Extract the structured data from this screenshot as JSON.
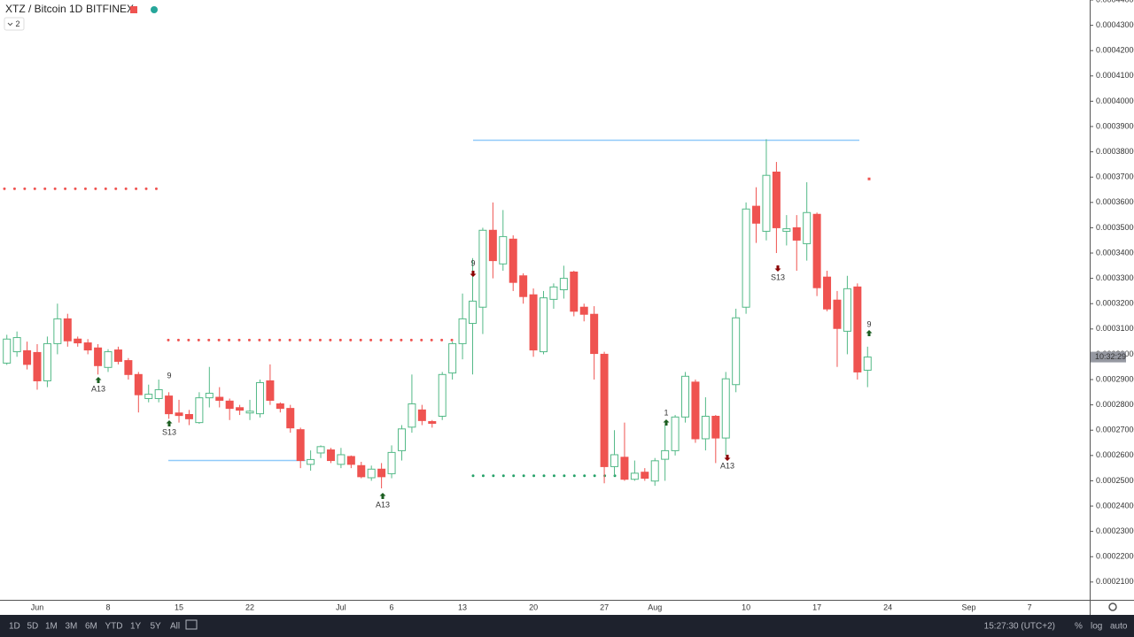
{
  "chart_data": {
    "type": "candlestick",
    "symbol": "XTZ / Bitcoin",
    "interval": "1D",
    "exchange": "BITFINEX",
    "layout_chip": "2",
    "categories": [
      null,
      null,
      null,
      "Jun",
      null,
      null,
      null,
      null,
      null,
      null,
      "8",
      null,
      null,
      null,
      null,
      null,
      null,
      "15",
      null,
      null,
      null,
      null,
      null,
      null,
      "22",
      null,
      null,
      null,
      null,
      null,
      null,
      null,
      null,
      "Jul",
      null,
      null,
      null,
      null,
      "6",
      null,
      null,
      null,
      null,
      null,
      null,
      "13",
      null,
      null,
      null,
      null,
      null,
      null,
      "20",
      null,
      null,
      null,
      null,
      null,
      null,
      "27",
      null,
      null,
      null,
      null,
      "Aug",
      null,
      null,
      null,
      null,
      null,
      null,
      null,
      null,
      "10",
      null,
      null,
      null,
      null,
      null,
      null,
      "17",
      null,
      null,
      null,
      null,
      null,
      null,
      "24",
      null,
      null,
      null,
      null,
      null,
      null,
      null,
      "Sep",
      null,
      null,
      null,
      null,
      null,
      "7",
      null,
      null,
      null,
      null,
      null,
      null
    ],
    "open": [
      0.0002965,
      0.000301,
      0.0003014,
      0.0003007,
      0.0002895,
      0.0003042,
      0.000314,
      0.000306,
      0.0003045,
      0.0003025,
      0.0002948,
      0.0003017,
      0.0002975,
      0.000292,
      0.0002825,
      0.0002825,
      0.0002835,
      0.0002768,
      0.0002762,
      0.000273,
      0.0002828,
      0.000283,
      0.0002815,
      0.0002789,
      0.0002768,
      0.0002765,
      0.0002895,
      0.0002804,
      0.0002786,
      0.0002702,
      0.0002565,
      0.000261,
      0.0002622,
      0.0002565,
      0.0002596,
      0.000256,
      0.0002512,
      0.0002546,
      0.0002528,
      0.0002619,
      0.0002712,
      0.000278,
      0.0002734,
      0.0002755,
      0.0002926,
      0.0003042,
      0.0003122,
      0.0003186,
      0.000349,
      0.0003357,
      0.0003455,
      0.000331,
      0.0003235,
      0.000301,
      0.0003217,
      0.0003255,
      0.0003325,
      0.0003186,
      0.0003158,
      0.0003,
      0.0002556,
      0.0002593,
      0.0002506,
      0.0002534,
      0.0002499,
      0.0002585,
      0.0002619,
      0.0002752,
      0.000289,
      0.0002666,
      0.0002755,
      0.0002669,
      0.000288,
      0.0003186,
      0.0003585,
      0.0003486,
      0.000372,
      0.0003486,
      0.00035,
      0.0003437,
      0.0003553,
      0.0003305,
      0.0003214,
      0.0003091,
      0.0003266,
      0.0002937,
      null,
      null,
      null,
      null,
      null,
      null,
      null,
      null,
      null,
      null,
      null,
      null,
      null,
      null,
      null,
      null,
      null,
      null,
      null,
      null,
      null,
      null
    ],
    "high": [
      0.0003077,
      0.000309,
      0.000305,
      0.000304,
      0.000307,
      0.00032,
      0.000316,
      0.000307,
      0.000306,
      0.000304,
      0.000302,
      0.000303,
      0.0002985,
      0.000293,
      0.000288,
      0.00029,
      0.000285,
      0.000282,
      0.000278,
      0.000285,
      0.000295,
      0.000287,
      0.0002825,
      0.00028,
      0.000282,
      0.00029,
      0.000296,
      0.000281,
      0.00028,
      0.000271,
      0.000262,
      0.000264,
      0.000263,
      0.000263,
      0.00026,
      0.0002575,
      0.000256,
      0.000257,
      0.000264,
      0.000272,
      0.000292,
      0.00028,
      0.000274,
      0.000293,
      0.000305,
      0.000324,
      0.000338,
      0.00035,
      0.00036,
      0.000357,
      0.000347,
      0.000332,
      0.000326,
      0.000325,
      0.000328,
      0.000335,
      0.000333,
      0.00032,
      0.000319,
      0.000301,
      0.00027,
      0.000273,
      0.000258,
      0.000255,
      0.000259,
      0.000272,
      0.000276,
      0.000293,
      0.00029,
      0.000283,
      0.000276,
      0.000293,
      0.000318,
      0.00036,
      0.000366,
      0.000385,
      0.000376,
      0.000355,
      0.000355,
      0.000368,
      0.000356,
      0.000333,
      0.000325,
      0.000331,
      0.000328,
      0.000303,
      null,
      null,
      null,
      null,
      null,
      null,
      null,
      null,
      null,
      null,
      null,
      null,
      null,
      null,
      null,
      null,
      null,
      null,
      null,
      null,
      null,
      null
    ],
    "low": [
      0.0002958,
      0.000299,
      0.000294,
      0.000286,
      0.000287,
      0.0003,
      0.000303,
      0.000303,
      0.0003,
      0.000292,
      0.000293,
      0.000296,
      0.00029,
      0.000277,
      0.000281,
      0.000281,
      0.0002745,
      0.000273,
      0.000272,
      0.0002725,
      0.000279,
      0.000279,
      0.000274,
      0.000276,
      0.000274,
      0.000275,
      0.00028,
      0.000277,
      0.000269,
      0.000255,
      0.000254,
      0.000259,
      0.000257,
      0.000255,
      0.000255,
      0.000251,
      0.00025,
      0.000247,
      0.000251,
      0.000258,
      0.000269,
      0.000272,
      0.000271,
      0.000274,
      0.00029,
      0.000298,
      0.000292,
      0.000308,
      0.00033,
      0.000333,
      0.000325,
      0.00032,
      0.000299,
      0.0003,
      0.000318,
      0.000322,
      0.000315,
      0.000313,
      0.00029,
      0.000249,
      0.000252,
      0.00025,
      0.00025,
      0.00025,
      0.000248,
      0.00025,
      0.00026,
      0.000273,
      0.000265,
      0.000262,
      0.000257,
      0.00026,
      0.000285,
      0.000316,
      0.000344,
      0.000345,
      0.00034,
      0.000343,
      0.000333,
      0.000337,
      0.000323,
      0.000317,
      0.000295,
      0.0003,
      0.00029,
      0.000287,
      null,
      null,
      null,
      null,
      null,
      null,
      null,
      null,
      null,
      null,
      null,
      null,
      null,
      null,
      null,
      null,
      null,
      null,
      null,
      null,
      null,
      null
    ],
    "close": [
      0.000306,
      0.0003066,
      0.000296,
      0.0002895,
      0.0003042,
      0.000314,
      0.0003053,
      0.0003045,
      0.0003017,
      0.0002955,
      0.000301,
      0.0002972,
      0.000292,
      0.000284,
      0.0002842,
      0.000286,
      0.0002765,
      0.0002758,
      0.0002745,
      0.0002828,
      0.0002846,
      0.0002818,
      0.0002786,
      0.0002779,
      0.0002775,
      0.0002888,
      0.0002818,
      0.0002786,
      0.0002709,
      0.000258,
      0.0002584,
      0.0002635,
      0.000258,
      0.0002603,
      0.0002565,
      0.0002516,
      0.0002546,
      0.0002516,
      0.0002612,
      0.0002705,
      0.0002804,
      0.0002738,
      0.0002727,
      0.000292,
      0.0003042,
      0.000314,
      0.000321,
      0.000349,
      0.000337,
      0.0003465,
      0.0003284,
      0.0003228,
      0.0003017,
      0.0003223,
      0.0003266,
      0.00033,
      0.000317,
      0.0003158,
      0.0003003,
      0.0002556,
      0.0002603,
      0.0002506,
      0.000253,
      0.000251,
      0.0002579,
      0.0002619,
      0.0002752,
      0.0002913,
      0.0002666,
      0.0002755,
      0.0002669,
      0.0002903,
      0.0003144,
      0.0003574,
      0.0003518,
      0.0003707,
      0.00035,
      0.0003496,
      0.0003451,
      0.000356,
      0.0003263,
      0.0003179,
      0.0003102,
      0.0003259,
      0.000293,
      0.0002989,
      null,
      null,
      null,
      null,
      null,
      null,
      null,
      null,
      null,
      null,
      null,
      null,
      null,
      null,
      null,
      null,
      null,
      null,
      null,
      null,
      null,
      null
    ],
    "up_color": "#53b987",
    "down_color": "#ef5350",
    "ylim": [
      0.000204,
      0.00044
    ],
    "yticks": [
      {
        "value": 0.00021,
        "label": "0.00021000"
      },
      {
        "value": 0.00022,
        "label": "0.00022000"
      },
      {
        "value": 0.00023,
        "label": "0.00023000"
      },
      {
        "value": 0.00024,
        "label": "0.00024000"
      },
      {
        "value": 0.00025,
        "label": "0.00025000"
      },
      {
        "value": 0.00026,
        "label": "0.00026000"
      },
      {
        "value": 0.00027,
        "label": "0.00027000"
      },
      {
        "value": 0.00028,
        "label": "0.00028000"
      },
      {
        "value": 0.00029,
        "label": "0.00029000"
      },
      {
        "value": 0.0003,
        "label": "0.00030000"
      },
      {
        "value": 0.00031,
        "label": "0.00031000"
      },
      {
        "value": 0.00032,
        "label": "0.00032000"
      },
      {
        "value": 0.00033,
        "label": "0.00033000"
      },
      {
        "value": 0.00034,
        "label": "0.00034000"
      },
      {
        "value": 0.00035,
        "label": "0.00035000"
      },
      {
        "value": 0.00036,
        "label": "0.00036000"
      },
      {
        "value": 0.00037,
        "label": "0.00037000"
      },
      {
        "value": 0.00038,
        "label": "0.00038000"
      },
      {
        "value": 0.00039,
        "label": "0.00039000"
      },
      {
        "value": 0.0004,
        "label": "0.00040000"
      },
      {
        "value": 0.00041,
        "label": "0.00041000"
      },
      {
        "value": 0.00042,
        "label": "0.00042000"
      },
      {
        "value": 0.00043,
        "label": "0.00043000"
      },
      {
        "value": 0.00044,
        "label": "0.00044000"
      }
    ],
    "grid": false,
    "levels": [
      {
        "value": 0.0003846,
        "color": "#90caf9",
        "style": "solid"
      },
      {
        "value": 0.000258,
        "color": "#90caf9",
        "style": "solid"
      },
      {
        "value": 0.0003654,
        "color": "#ef5350",
        "style": "dotted"
      },
      {
        "value": 0.0003056,
        "color": "#ef5350",
        "style": "dotted"
      },
      {
        "value": 0.000252,
        "color": "#26a269",
        "style": "dotted"
      },
      {
        "value": 0.0003693,
        "color": "#ef5350",
        "style": "point"
      }
    ],
    "signals": [
      {
        "text": "A13",
        "color": "#2fa4c7"
      },
      {
        "text": "9",
        "color": "#ef5350"
      },
      {
        "text": "S13",
        "color": "#f0a020"
      },
      {
        "text": "A13",
        "color": "#2fa4c7"
      },
      {
        "text": "9",
        "color": "#26a269"
      },
      {
        "text": "1",
        "color": "#1e9fb0"
      },
      {
        "text": "A13",
        "color": "#2fa4c7"
      },
      {
        "text": "S13",
        "color": "#f0a020"
      },
      {
        "text": "9",
        "color": "#ef5350"
      }
    ],
    "countdown": "10:32:29",
    "ranges": [
      "1D",
      "5D",
      "1M",
      "3M",
      "6M",
      "YTD",
      "1Y",
      "5Y",
      "All"
    ],
    "clock": "15:27:30 (UTC+2)",
    "scale_buttons": [
      "%",
      "log",
      "auto"
    ]
  }
}
